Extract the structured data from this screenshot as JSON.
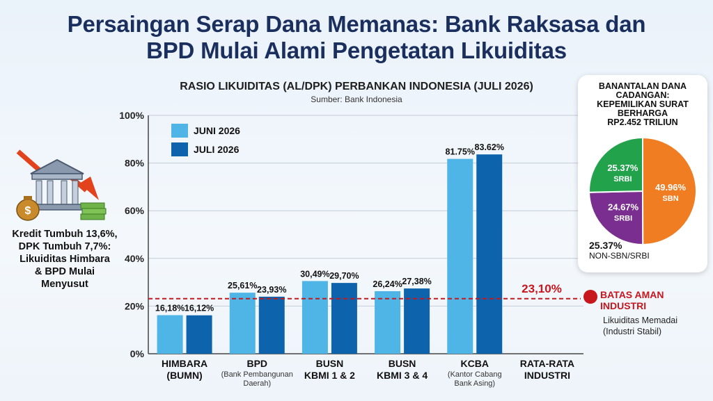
{
  "page": {
    "title_line1": "Persaingan Serap Dana Memanas: Bank Raksasa dan",
    "title_line2": "BPD Mulai Alami Pengetatan Likuiditas"
  },
  "left_panel": {
    "lines": [
      "Kredit Tumbuh 13,6%,",
      "DPK Tumbuh 7,7%:",
      "Likuiditas Himbara",
      "& BPD Mulai",
      "Menyusut"
    ],
    "icons": [
      "bank-building-icon",
      "money-bag-icon",
      "down-arrow-icon",
      "cash-stack-icon"
    ]
  },
  "chart_data": {
    "type": "bar",
    "title": "RASIO LIKUIDITAS (AL/DPK) PERBANKAN INDONESIA (JULI 2026)",
    "subtitle": "Sumber: Bank Indonesia",
    "categories": [
      {
        "main": [
          "HIMBARA",
          "(BUMN)"
        ],
        "sub": []
      },
      {
        "main": [
          "BPD"
        ],
        "sub": [
          "(Bank Pembangunan",
          "Daerah)"
        ]
      },
      {
        "main": [
          "BUSN",
          "KBMI 1 & 2"
        ],
        "sub": []
      },
      {
        "main": [
          "BUSN",
          "KBMI 3 & 4"
        ],
        "sub": []
      },
      {
        "main": [
          "KCBA"
        ],
        "sub": [
          "(Kantor Cabang",
          "Bank Asing)"
        ]
      },
      {
        "main": [
          "RATA-RATA",
          "INDUSTRI"
        ],
        "sub": []
      }
    ],
    "series": [
      {
        "name": "JUNI 2026",
        "values": [
          16.18,
          25.61,
          30.49,
          26.24,
          81.75,
          null
        ],
        "labels": [
          "16,18%",
          "25,61%",
          "30,49%",
          "26,24%",
          "81.75%",
          ""
        ],
        "color": "#4fb4e6"
      },
      {
        "name": "JULI 2026",
        "values": [
          16.12,
          23.93,
          29.7,
          27.38,
          83.62,
          null
        ],
        "labels": [
          "16,12%",
          "23,93%",
          "29,70%",
          "27,38%",
          "83.62%",
          ""
        ],
        "color": "#0e64ac"
      }
    ],
    "yticks": [
      0,
      20,
      40,
      60,
      80,
      100
    ],
    "ytick_labels": [
      "0%",
      "20%",
      "40%",
      "60%",
      "80%",
      "100%"
    ],
    "ylim": [
      0,
      100
    ],
    "legend_position": "top-left",
    "grid": true,
    "reference_line": {
      "value": 23.1,
      "label": "23,10%",
      "color": "#c8161d"
    }
  },
  "safe_limit": {
    "label_line1": "BATAS AMAN",
    "label_line2": "INDUSTRI",
    "sub_line1": "Likuiditas Memadai",
    "sub_line2": "(Industri Stabil)"
  },
  "pie": {
    "title_lines": [
      "BANANTALAN DANA",
      "CADANGAN:",
      "KEPEMILIKAN SURAT",
      "BERHARGA",
      "RP2.452 TRILIUN"
    ],
    "slices": [
      {
        "label": "SBN",
        "value": 49.96,
        "value_label": "49.96%",
        "color": "#f07d22"
      },
      {
        "label": "SRBI",
        "value": 24.67,
        "value_label": "24.67%",
        "color": "#7a2f90"
      },
      {
        "label": "SRBI",
        "value": 25.37,
        "value_label": "25.37%",
        "color": "#22a34b"
      }
    ],
    "extra_value": "25.37%",
    "extra_label": "NON-SBN/SRBI"
  }
}
